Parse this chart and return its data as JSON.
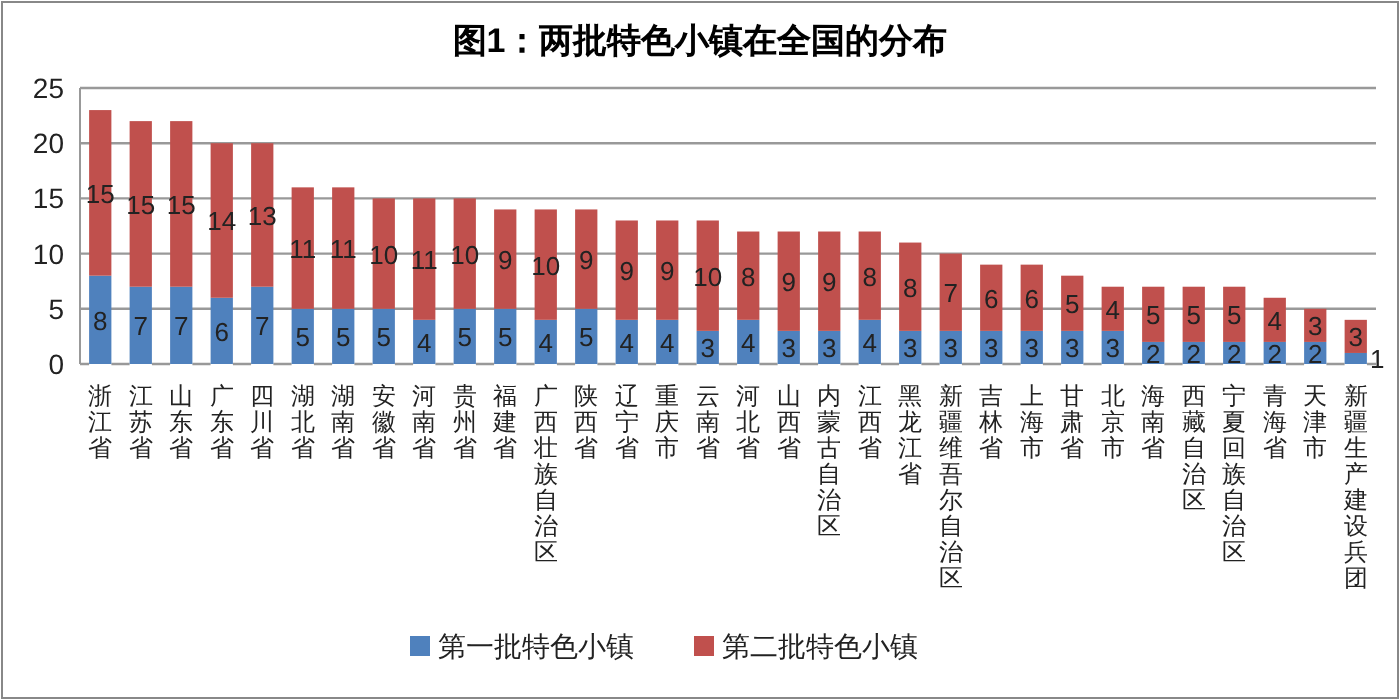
{
  "chart_data": {
    "type": "bar",
    "title": "图1：两批特色小镇在全国的分布",
    "stacked": true,
    "data_labels": true,
    "grid": "y",
    "legend": "bottom",
    "categories": [
      "浙江省",
      "江苏省",
      "山东省",
      "广东省",
      "四川省",
      "湖北省",
      "湖南省",
      "安徽省",
      "河南省",
      "贵州省",
      "福建省",
      "广西壮族自治区",
      "陕西省",
      "辽宁省",
      "重庆市",
      "云南省",
      "河北省",
      "山西省",
      "内蒙古自治区",
      "江西省",
      "黑龙江省",
      "新疆维吾尔自治区",
      "吉林省",
      "上海市",
      "甘肃省",
      "北京市",
      "海南省",
      "西藏自治区",
      "宁夏回族自治区",
      "青海省",
      "天津市",
      "新疆生产建设兵团"
    ],
    "series": [
      {
        "name": "第一批特色小镇",
        "color": "#4f81bd",
        "values": [
          8,
          7,
          7,
          6,
          7,
          5,
          5,
          5,
          4,
          5,
          5,
          4,
          5,
          4,
          4,
          3,
          4,
          3,
          3,
          4,
          3,
          3,
          3,
          3,
          3,
          3,
          2,
          2,
          2,
          2,
          2,
          1
        ]
      },
      {
        "name": "第二批特色小镇",
        "color": "#c0504d",
        "values": [
          15,
          15,
          15,
          14,
          13,
          11,
          11,
          10,
          11,
          10,
          9,
          10,
          9,
          9,
          9,
          10,
          8,
          9,
          9,
          8,
          8,
          7,
          6,
          6,
          5,
          4,
          5,
          5,
          5,
          4,
          3,
          3
        ]
      }
    ],
    "ylim": [
      0,
      25
    ],
    "yticks": [
      0,
      5,
      10,
      15,
      20,
      25
    ]
  }
}
